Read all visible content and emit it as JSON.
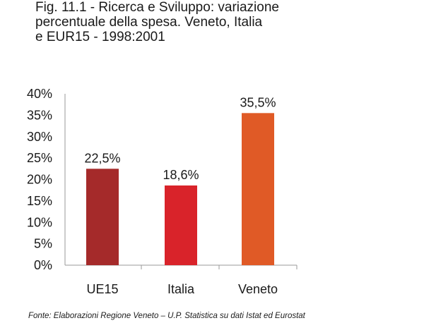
{
  "chart_data": {
    "type": "bar",
    "title": "Fig. 11.1 - Ricerca e Sviluppo: variazione\npercentuale della spesa. Veneto, Italia\ne EUR15 - 1998:2001",
    "categories": [
      "UE15",
      "Italia",
      "Veneto"
    ],
    "values": [
      22.5,
      18.6,
      35.5
    ],
    "data_labels": [
      "22,5%",
      "18,6%",
      "35,5%"
    ],
    "colors": [
      "#a52a2a",
      "#d9232a",
      "#e05a26"
    ],
    "ylim": [
      0,
      40
    ],
    "yticks": [
      "0%",
      "5%",
      "10%",
      "15%",
      "20%",
      "25%",
      "30%",
      "35%",
      "40%"
    ],
    "xlabel": "",
    "ylabel": "",
    "grid": false,
    "legend": "none"
  },
  "source_note": "Fonte: Elaborazioni Regione Veneto – U.P. Statistica su dati Istat ed Eurostat"
}
